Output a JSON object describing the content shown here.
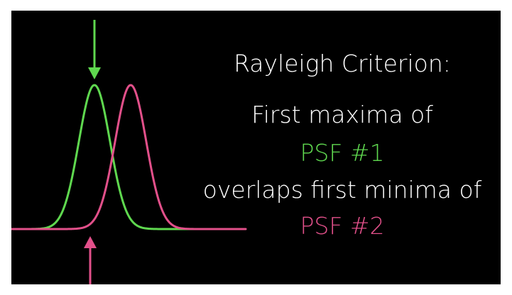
{
  "slide": {
    "title": "Rayleigh Criterion:",
    "line1": "First maxima of",
    "psf1_label": "PSF #1",
    "line3": "overlaps first minima of",
    "psf2_label": "PSF #2"
  },
  "colors": {
    "background": "#000000",
    "text": "#ffffff",
    "psf1": "#5fd84f",
    "psf2": "#e2508a"
  },
  "diagram": {
    "psf1_arrow_icon": "arrow-down-icon",
    "psf2_arrow_icon": "arrow-up-icon"
  }
}
